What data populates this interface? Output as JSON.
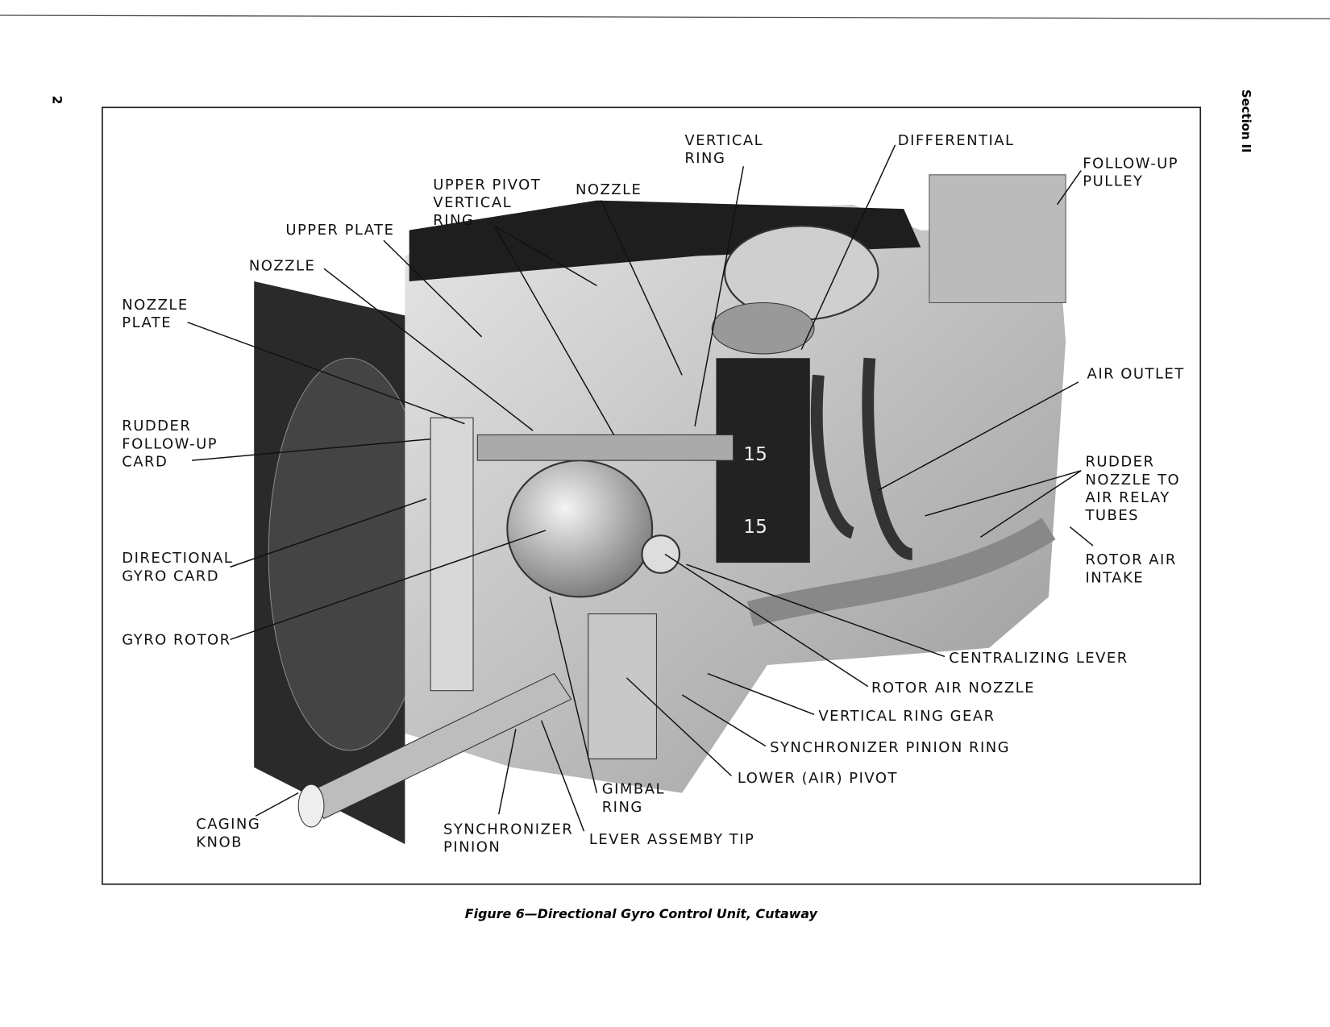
{
  "page_number": "2",
  "section": "Section II",
  "figure": {
    "labels": [
      {
        "lines": [
          "VERTICAL",
          "RING"
        ]
      },
      {
        "lines": [
          "DIFFERENTIAL"
        ]
      },
      {
        "lines": [
          "FOLLOW-UP",
          "PULLEY"
        ]
      },
      {
        "lines": [
          "UPPER PIVOT",
          "VERTICAL",
          "RING"
        ]
      },
      {
        "lines": [
          "NOZZLE"
        ]
      },
      {
        "lines": [
          "UPPER PLATE"
        ]
      },
      {
        "lines": [
          "NOZZLE"
        ]
      },
      {
        "lines": [
          "NOZZLE",
          "PLATE"
        ]
      },
      {
        "lines": [
          "RUDDER",
          "FOLLOW-UP",
          "CARD"
        ]
      },
      {
        "lines": [
          "AIR OUTLET"
        ]
      },
      {
        "lines": [
          "RUDDER",
          "NOZZLE TO",
          "AIR RELAY",
          "TUBES"
        ]
      },
      {
        "lines": [
          "ROTOR AIR",
          "INTAKE"
        ]
      },
      {
        "lines": [
          "DIRECTIONAL",
          "GYRO CARD"
        ]
      },
      {
        "lines": [
          "GYRO ROTOR"
        ]
      },
      {
        "lines": [
          "CENTRALIZING LEVER"
        ]
      },
      {
        "lines": [
          "ROTOR AIR NOZZLE"
        ]
      },
      {
        "lines": [
          "VERTICAL RING GEAR"
        ]
      },
      {
        "lines": [
          "SYNCHRONIZER PINION RING"
        ]
      },
      {
        "lines": [
          "LOWER (AIR) PIVOT"
        ]
      },
      {
        "lines": [
          "GIMBAL",
          "RING"
        ]
      },
      {
        "lines": [
          "CAGING",
          "KNOB"
        ]
      },
      {
        "lines": [
          "SYNCHRONIZER",
          "PINION"
        ]
      },
      {
        "lines": [
          "LEVER ASSEMBY TIP"
        ]
      }
    ],
    "caption": "Figure 6—Directional Gyro Control Unit, Cutaway"
  }
}
